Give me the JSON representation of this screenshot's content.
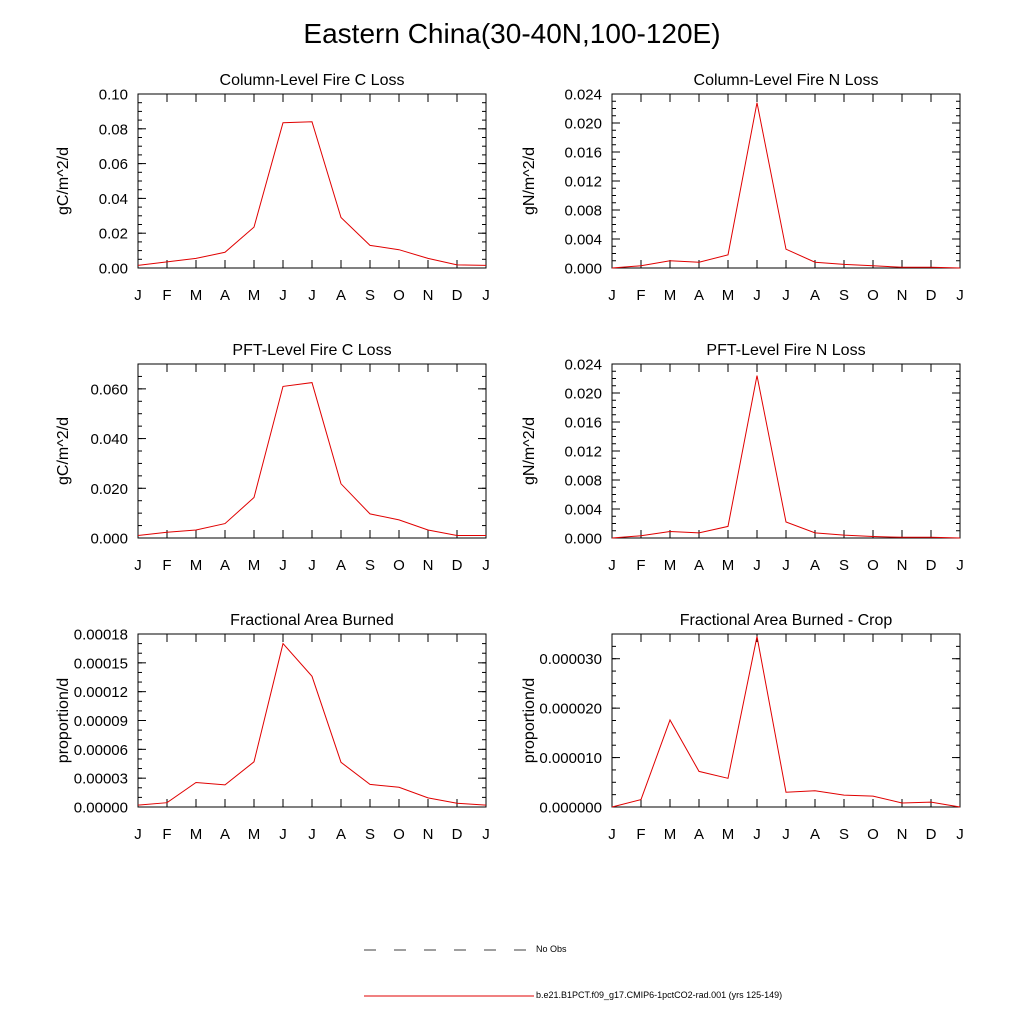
{
  "title": "Eastern China(30-40N,100-120E)",
  "month_labels": [
    "J",
    "F",
    "M",
    "A",
    "M",
    "J",
    "J",
    "A",
    "S",
    "O",
    "N",
    "D",
    "J"
  ],
  "chart_data": [
    {
      "type": "line",
      "title": "Column-Level Fire C Loss",
      "ylabel": "gC/m^2/d",
      "ylim": [
        0,
        0.1
      ],
      "yticks": [
        0,
        0.02,
        0.04,
        0.06,
        0.08,
        0.1
      ],
      "ytick_labels": [
        "0.00",
        "0.02",
        "0.04",
        "0.06",
        "0.08",
        "0.10"
      ],
      "yminor": 0.005,
      "series": [
        {
          "values": [
            0.0015,
            0.0035,
            0.0055,
            0.009,
            0.0235,
            0.0835,
            0.084,
            0.029,
            0.013,
            0.0105,
            0.0055,
            0.0018,
            0.0015
          ]
        }
      ]
    },
    {
      "type": "line",
      "title": "Column-Level Fire N Loss",
      "ylabel": "gN/m^2/d",
      "ylim": [
        0,
        0.024
      ],
      "yticks": [
        0,
        0.004,
        0.008,
        0.012,
        0.016,
        0.02,
        0.024
      ],
      "ytick_labels": [
        "0.000",
        "0.004",
        "0.008",
        "0.012",
        "0.016",
        "0.020",
        "0.024"
      ],
      "yminor": 0.001,
      "series": [
        {
          "values": [
            0.0,
            0.0003,
            0.001,
            0.0008,
            0.0018,
            0.0228,
            0.0026,
            0.0008,
            0.0005,
            0.0003,
            0.0001,
            0.0001,
            0.0
          ]
        }
      ]
    },
    {
      "type": "line",
      "title": "PFT-Level Fire C Loss",
      "ylabel": "gC/m^2/d",
      "ylim": [
        0,
        0.07
      ],
      "yticks": [
        0,
        0.02,
        0.04,
        0.06
      ],
      "ytick_labels": [
        "0.000",
        "0.020",
        "0.040",
        "0.060"
      ],
      "yminor": 0.005,
      "series": [
        {
          "values": [
            0.001,
            0.0023,
            0.0032,
            0.0058,
            0.0163,
            0.061,
            0.0625,
            0.0218,
            0.0097,
            0.0073,
            0.0032,
            0.001,
            0.001
          ]
        }
      ]
    },
    {
      "type": "line",
      "title": "PFT-Level Fire N Loss",
      "ylabel": "gN/m^2/d",
      "ylim": [
        0,
        0.024
      ],
      "yticks": [
        0,
        0.004,
        0.008,
        0.012,
        0.016,
        0.02,
        0.024
      ],
      "ytick_labels": [
        "0.000",
        "0.004",
        "0.008",
        "0.012",
        "0.016",
        "0.020",
        "0.024"
      ],
      "yminor": 0.001,
      "series": [
        {
          "values": [
            0.0,
            0.0003,
            0.0009,
            0.0007,
            0.0016,
            0.0224,
            0.0022,
            0.0007,
            0.0004,
            0.0002,
            0.0001,
            0.0001,
            0.0
          ]
        }
      ]
    },
    {
      "type": "line",
      "title": "Fractional Area Burned",
      "ylabel": "proportion/d",
      "ylim": [
        0,
        0.00018
      ],
      "yticks": [
        0,
        3e-05,
        6e-05,
        9e-05,
        0.00012,
        0.00015,
        0.00018
      ],
      "ytick_labels": [
        "0.00000",
        "0.00003",
        "0.00006",
        "0.00009",
        "0.00012",
        "0.00015",
        "0.00018"
      ],
      "yminor": 1e-05,
      "series": [
        {
          "values": [
            2e-06,
            4.5e-06,
            2.55e-05,
            2.3e-05,
            4.7e-05,
            0.00017,
            0.000136,
            4.65e-05,
            2.35e-05,
            2.05e-05,
            9.5e-06,
            4e-06,
            2e-06
          ]
        }
      ]
    },
    {
      "type": "line",
      "title": "Fractional Area Burned - Crop",
      "ylabel": "proportion/d",
      "ylim": [
        0,
        3.5e-05
      ],
      "yticks": [
        0,
        1e-05,
        2e-05,
        3e-05
      ],
      "ytick_labels": [
        "0.000000",
        "0.000010",
        "0.000020",
        "0.000030"
      ],
      "yminor": 2.5e-06,
      "series": [
        {
          "values": [
            0.0,
            1.5e-06,
            1.76e-05,
            7.2e-06,
            5.8e-06,
            3.45e-05,
            3e-06,
            3.3e-06,
            2.4e-06,
            2.2e-06,
            8e-07,
            1e-06,
            0.0
          ]
        }
      ]
    }
  ],
  "legend": [
    {
      "label": "No Obs",
      "style": "dashed",
      "color": "#000000"
    },
    {
      "label": "b.e21.B1PCT.f09_g17.CMIP6-1pctCO2-rad.001 (yrs 125-149)",
      "style": "solid",
      "color": "#e00000"
    }
  ],
  "colors": {
    "series": "#e00000",
    "axis": "#000000"
  }
}
